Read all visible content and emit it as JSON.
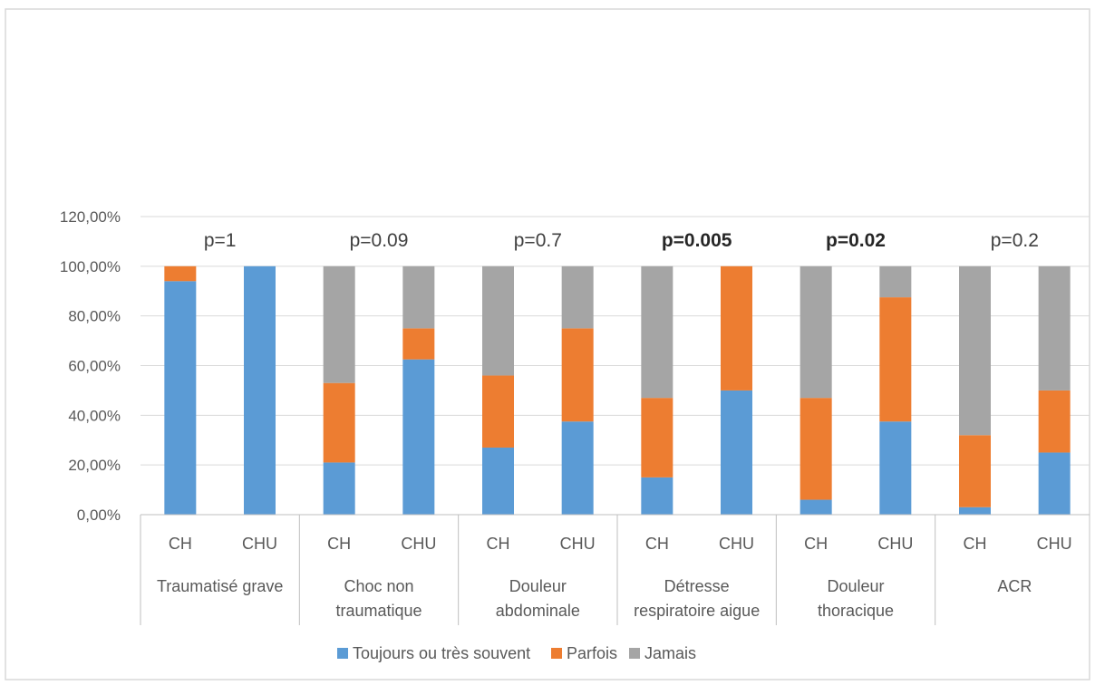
{
  "chart_data": {
    "type": "bar",
    "stacked": true,
    "ylim": [
      0,
      1.2
    ],
    "yticks": [
      "0,00%",
      "20,00%",
      "40,00%",
      "60,00%",
      "80,00%",
      "100,00%",
      "120,00%"
    ],
    "grid": true,
    "legend_position": "bottom",
    "groups": [
      {
        "label_lines": [
          "Traumatisé grave"
        ],
        "p_value": "p=1",
        "significant": false
      },
      {
        "label_lines": [
          "Choc non",
          "traumatique"
        ],
        "p_value": "p=0.09",
        "significant": false
      },
      {
        "label_lines": [
          "Douleur",
          "abdominale"
        ],
        "p_value": "p=0.7",
        "significant": false
      },
      {
        "label_lines": [
          "Détresse",
          "respiratoire aigue"
        ],
        "p_value": "p=0.005",
        "significant": true
      },
      {
        "label_lines": [
          "Douleur",
          "thoracique"
        ],
        "p_value": "p=0.02",
        "significant": true
      },
      {
        "label_lines": [
          "ACR"
        ],
        "p_value": "p=0.2",
        "significant": false
      }
    ],
    "categories": [
      "CH",
      "CHU",
      "CH",
      "CHU",
      "CH",
      "CHU",
      "CH",
      "CHU",
      "CH",
      "CHU",
      "CH",
      "CHU"
    ],
    "series": [
      {
        "name": "Toujours ou très souvent",
        "color": "#5b9bd5",
        "values": [
          0.94,
          1.0,
          0.21,
          0.625,
          0.27,
          0.375,
          0.15,
          0.5,
          0.06,
          0.375,
          0.03,
          0.25
        ]
      },
      {
        "name": "Parfois",
        "color": "#ed7d31",
        "values": [
          0.06,
          0.0,
          0.32,
          0.125,
          0.29,
          0.375,
          0.32,
          0.5,
          0.41,
          0.5,
          0.29,
          0.25
        ]
      },
      {
        "name": "Jamais",
        "color": "#a5a5a5",
        "values": [
          0.0,
          0.0,
          0.47,
          0.25,
          0.44,
          0.25,
          0.53,
          0.0,
          0.53,
          0.125,
          0.68,
          0.5
        ]
      }
    ]
  }
}
